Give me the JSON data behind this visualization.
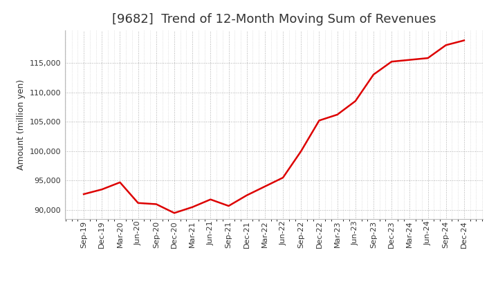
{
  "title": "[9682]  Trend of 12-Month Moving Sum of Revenues",
  "ylabel": "Amount (million yen)",
  "line_color": "#dd0000",
  "background_color": "#ffffff",
  "plot_bg_color": "#ffffff",
  "grid_color": "#999999",
  "x_labels": [
    "Sep-19",
    "Dec-19",
    "Mar-20",
    "Jun-20",
    "Sep-20",
    "Dec-20",
    "Mar-21",
    "Jun-21",
    "Sep-21",
    "Dec-21",
    "Mar-22",
    "Jun-22",
    "Sep-22",
    "Dec-22",
    "Mar-23",
    "Jun-23",
    "Sep-23",
    "Dec-23",
    "Mar-24",
    "Jun-24",
    "Sep-24",
    "Dec-24"
  ],
  "values": [
    92700,
    93500,
    94700,
    91200,
    91000,
    89500,
    90500,
    91800,
    90700,
    92500,
    94000,
    95500,
    100000,
    105200,
    106200,
    108500,
    113000,
    115200,
    115500,
    115800,
    118000,
    118800
  ],
  "ylim_min": 88500,
  "ylim_max": 120500,
  "yticks": [
    90000,
    95000,
    100000,
    105000,
    110000,
    115000
  ],
  "title_fontsize": 13,
  "ylabel_fontsize": 9,
  "tick_fontsize": 8,
  "line_width": 1.8,
  "title_color": "#333333",
  "tick_color": "#333333"
}
